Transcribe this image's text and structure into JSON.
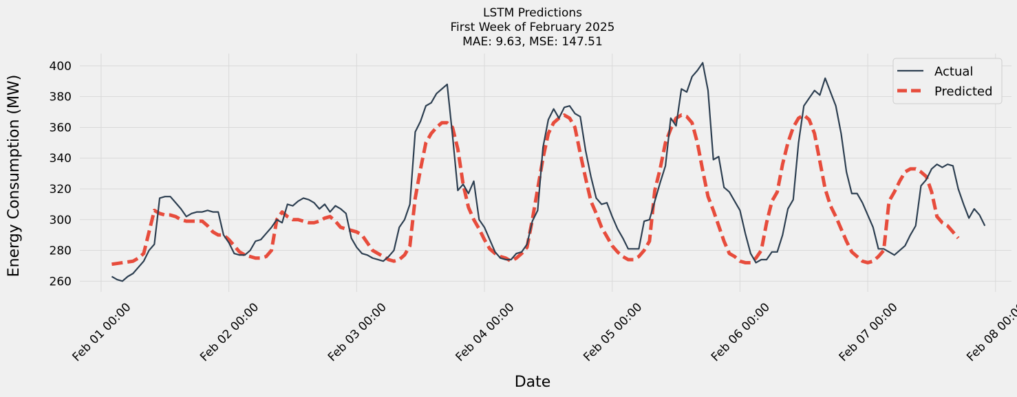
{
  "chart_data": {
    "type": "line",
    "title": [
      "LSTM Predictions",
      "First Week of February 2025",
      "MAE: 9.63, MSE: 147.51"
    ],
    "xlabel": "Date",
    "ylabel": "Energy Consumption (MW)",
    "x_start": "Feb 01 00:00",
    "x_interval_hours": 1,
    "xlim": [
      "Jan 31 20:00",
      "Feb 08 03:00"
    ],
    "ylim": [
      253,
      408
    ],
    "xticks": [
      "Feb 01 00:00",
      "Feb 02 00:00",
      "Feb 03 00:00",
      "Feb 04 00:00",
      "Feb 05 00:00",
      "Feb 06 00:00",
      "Feb 07 00:00",
      "Feb 08 00:00"
    ],
    "yticks": [
      260,
      280,
      300,
      320,
      340,
      360,
      380,
      400
    ],
    "grid": true,
    "legend": "top-right",
    "series": [
      {
        "name": "Actual",
        "color": "#2c3e50",
        "style": "solid",
        "x_start": "Feb 01 02:00",
        "values": [
          263,
          261,
          260,
          263,
          265,
          269,
          273,
          280,
          284,
          314,
          315,
          315,
          311,
          307,
          302,
          304,
          305,
          305,
          306,
          305,
          305,
          290,
          285,
          278,
          277,
          277,
          280,
          286,
          287,
          291,
          295,
          300,
          298,
          310,
          309,
          312,
          314,
          313,
          311,
          307,
          310,
          305,
          309,
          307,
          304,
          288,
          282,
          278,
          277,
          275,
          274,
          273,
          276,
          280,
          295,
          300,
          310,
          357,
          364,
          374,
          376,
          382,
          385,
          388,
          355,
          319,
          323,
          317,
          325,
          300,
          295,
          287,
          279,
          275,
          274,
          274,
          278,
          279,
          284,
          299,
          306,
          347,
          365,
          372,
          366,
          373,
          374,
          369,
          367,
          345,
          328,
          314,
          310,
          311,
          302,
          294,
          288,
          281,
          281,
          281,
          299,
          300,
          312,
          324,
          335,
          366,
          361,
          385,
          383,
          393,
          397,
          402,
          384,
          339,
          341,
          321,
          318,
          312,
          306,
          291,
          278,
          272,
          274,
          274,
          279,
          279,
          290,
          307,
          313,
          350,
          374,
          379,
          384,
          381,
          392,
          383,
          374,
          356,
          331,
          317,
          317,
          311,
          303,
          295,
          281,
          281,
          279,
          277,
          280,
          283,
          290,
          296,
          322,
          326,
          333,
          336,
          334,
          336,
          335,
          320,
          310,
          301,
          307,
          303,
          296
        ]
      },
      {
        "name": "Predicted",
        "color": "#e74c3c",
        "style": "dashed",
        "x_start": "Feb 01 02:00",
        "values": [
          271,
          271.5,
          272,
          272.5,
          273,
          275,
          278,
          292,
          306,
          304,
          303,
          303,
          302,
          300,
          299,
          299,
          299,
          299,
          296,
          292,
          290,
          290,
          287,
          283,
          279,
          277,
          276,
          275,
          275,
          276,
          280,
          300,
          305,
          302,
          300,
          300,
          299,
          298,
          298,
          299,
          301,
          302,
          299,
          295,
          294,
          293,
          292,
          290,
          285,
          280,
          278,
          276,
          274,
          273,
          274,
          277,
          283,
          314,
          333,
          350,
          356,
          360,
          363,
          363,
          360,
          346,
          323,
          308,
          300,
          294,
          287,
          281,
          278,
          276,
          275,
          273,
          275,
          278,
          282,
          300,
          320,
          340,
          356,
          363,
          366,
          368,
          366,
          360,
          343,
          327,
          312,
          304,
          295,
          289,
          283,
          279,
          276,
          274,
          274,
          276,
          280,
          286,
          319,
          333,
          350,
          359,
          366,
          368,
          367,
          363,
          350,
          332,
          315,
          306,
          296,
          286,
          278,
          276,
          273,
          272,
          272,
          275,
          280,
          298,
          312,
          318,
          336,
          350,
          360,
          366,
          368,
          365,
          356,
          338,
          320,
          309,
          302,
          294,
          286,
          279,
          276,
          273,
          272,
          273,
          276,
          280,
          312,
          318,
          325,
          331,
          333,
          333,
          331,
          328,
          318,
          302,
          298,
          296,
          292,
          288
        ]
      }
    ]
  }
}
